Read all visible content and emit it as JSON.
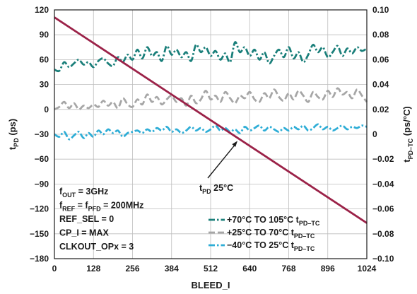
{
  "chart_data": {
    "type": "line",
    "xlabel": "BLEED_I",
    "ylabel_left": {
      "main": "t",
      "sub": "PD",
      "unit": " (ps)"
    },
    "ylabel_right": {
      "main": "t",
      "sub": "PD–TC",
      "unit": " (ps/°C)"
    },
    "x_ticks": [
      0,
      128,
      256,
      384,
      512,
      640,
      768,
      896,
      1024
    ],
    "xlim": [
      0,
      1024
    ],
    "y_left_ticks": [
      "120",
      "90",
      "60",
      "30",
      "0",
      "−30",
      "−60",
      "−90",
      "−120",
      "−150",
      "−180"
    ],
    "ylim_left": [
      -180,
      120
    ],
    "y_right_ticks": [
      "0.10",
      "0.08",
      "0.06",
      "0.04",
      "0.02",
      "0",
      "−0.02",
      "−0.04",
      "−0.06",
      "−0.08",
      "−0.10"
    ],
    "ylim_right": [
      -0.1,
      0.1
    ],
    "grid": true,
    "colors": {
      "tpd": "#9b2248",
      "hot": "#1a7f7a",
      "mid": "#a6a6a6",
      "cold": "#2eadd6"
    },
    "tpd_line": {
      "x": [
        0,
        1024
      ],
      "y": [
        111,
        -137
      ]
    },
    "tpd_annotation": {
      "main": "t",
      "sub": "PD",
      "rest": " 25°C",
      "points_to": [
        600,
        -38
      ]
    },
    "conditions": [
      {
        "main": "f",
        "sub": "OUT",
        "rest": " = 3GHz"
      },
      {
        "main": "f",
        "sub": "REF",
        "rest": " = f",
        "sub2": "PFD",
        "rest2": " = 200MHz"
      },
      {
        "main": "REF_SEL = 0"
      },
      {
        "main": "CP_I = MAX"
      },
      {
        "main": "CLKOUT_OPx = 3"
      }
    ],
    "series": [
      {
        "key": "hot",
        "name": {
          "main": "+70°C TO 105°C t",
          "sub": "PD–TC"
        },
        "axis": "right",
        "color": "#1a7f7a",
        "style": "dashdot",
        "x": [
          0,
          16,
          32,
          48,
          64,
          80,
          96,
          112,
          128,
          144,
          160,
          176,
          192,
          208,
          224,
          240,
          256,
          272,
          288,
          304,
          320,
          336,
          352,
          368,
          384,
          400,
          416,
          432,
          448,
          464,
          480,
          496,
          512,
          528,
          544,
          560,
          576,
          592,
          608,
          624,
          640,
          656,
          672,
          688,
          704,
          720,
          736,
          752,
          768,
          784,
          800,
          816,
          832,
          848,
          864,
          880,
          896,
          912,
          928,
          944,
          960,
          976,
          992,
          1008,
          1024
        ],
        "y": [
          0.052,
          0.051,
          0.058,
          0.054,
          0.057,
          0.06,
          0.056,
          0.058,
          0.054,
          0.059,
          0.061,
          0.057,
          0.055,
          0.062,
          0.058,
          0.064,
          0.06,
          0.068,
          0.061,
          0.07,
          0.063,
          0.066,
          0.059,
          0.071,
          0.064,
          0.068,
          0.062,
          0.066,
          0.059,
          0.072,
          0.066,
          0.07,
          0.063,
          0.067,
          0.06,
          0.065,
          0.058,
          0.074,
          0.066,
          0.07,
          0.063,
          0.068,
          0.06,
          0.066,
          0.057,
          0.063,
          0.068,
          0.062,
          0.07,
          0.061,
          0.066,
          0.058,
          0.064,
          0.072,
          0.066,
          0.07,
          0.062,
          0.066,
          0.071,
          0.063,
          0.069,
          0.065,
          0.07,
          0.067,
          0.069
        ]
      },
      {
        "key": "mid",
        "name": {
          "main": "+25°C TO 70°C t",
          "sub": "PD–TC"
        },
        "axis": "right",
        "color": "#a6a6a6",
        "style": "dashed",
        "x": [
          0,
          16,
          32,
          48,
          64,
          80,
          96,
          112,
          128,
          144,
          160,
          176,
          192,
          208,
          224,
          240,
          256,
          272,
          288,
          304,
          320,
          336,
          352,
          368,
          384,
          400,
          416,
          432,
          448,
          464,
          480,
          496,
          512,
          528,
          544,
          560,
          576,
          592,
          608,
          624,
          640,
          656,
          672,
          688,
          704,
          720,
          736,
          752,
          768,
          784,
          800,
          816,
          832,
          848,
          864,
          880,
          896,
          912,
          928,
          944,
          960,
          976,
          992,
          1008,
          1024
        ],
        "y": [
          0.02,
          0.022,
          0.026,
          0.021,
          0.025,
          0.02,
          0.023,
          0.021,
          0.024,
          0.022,
          0.027,
          0.023,
          0.026,
          0.021,
          0.029,
          0.024,
          0.022,
          0.028,
          0.024,
          0.032,
          0.026,
          0.03,
          0.024,
          0.028,
          0.031,
          0.026,
          0.029,
          0.023,
          0.031,
          0.025,
          0.028,
          0.035,
          0.028,
          0.031,
          0.026,
          0.034,
          0.029,
          0.025,
          0.031,
          0.029,
          0.034,
          0.028,
          0.026,
          0.033,
          0.029,
          0.036,
          0.03,
          0.027,
          0.033,
          0.028,
          0.035,
          0.031,
          0.026,
          0.034,
          0.03,
          0.028,
          0.035,
          0.03,
          0.037,
          0.032,
          0.034,
          0.029,
          0.036,
          0.031,
          0.026
        ]
      },
      {
        "key": "cold",
        "name": {
          "main": "−40°C TO 25°C t",
          "sub": "PD–TC"
        },
        "axis": "right",
        "color": "#2eadd6",
        "style": "dashdot",
        "x": [
          0,
          16,
          32,
          48,
          64,
          80,
          96,
          112,
          128,
          144,
          160,
          176,
          192,
          208,
          224,
          240,
          256,
          272,
          288,
          304,
          320,
          336,
          352,
          368,
          384,
          400,
          416,
          432,
          448,
          464,
          480,
          496,
          512,
          528,
          544,
          560,
          576,
          592,
          608,
          624,
          640,
          656,
          672,
          688,
          704,
          720,
          736,
          752,
          768,
          784,
          800,
          816,
          832,
          848,
          864,
          880,
          896,
          912,
          928,
          944,
          960,
          976,
          992,
          1008,
          1024
        ],
        "y": [
          0.0,
          -0.002,
          0.002,
          -0.004,
          -0.001,
          0.002,
          -0.003,
          0.001,
          -0.002,
          0.003,
          0.0,
          0.004,
          0.001,
          0.003,
          -0.002,
          0.001,
          0.002,
          0.003,
          0.001,
          0.004,
          0.002,
          0.005,
          0.003,
          0.006,
          0.002,
          0.004,
          0.001,
          0.003,
          0.006,
          0.003,
          0.005,
          0.002,
          0.004,
          0.007,
          0.003,
          0.005,
          0.002,
          0.004,
          0.001,
          0.006,
          0.003,
          0.005,
          0.007,
          0.003,
          0.006,
          0.004,
          0.002,
          0.005,
          0.003,
          0.006,
          0.004,
          0.007,
          0.003,
          0.005,
          0.008,
          0.004,
          0.006,
          0.003,
          0.005,
          0.007,
          0.004,
          0.006,
          0.005,
          0.007,
          0.006
        ]
      }
    ]
  }
}
